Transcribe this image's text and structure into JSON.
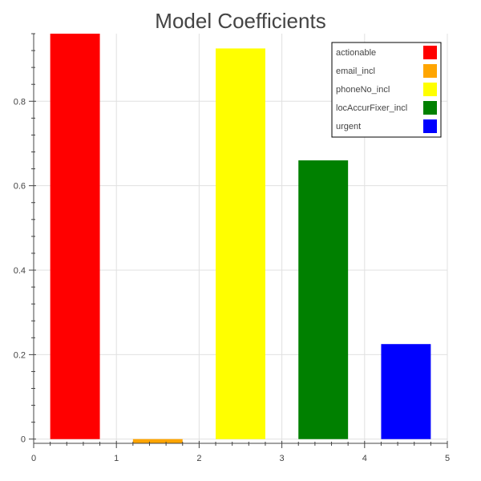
{
  "chart_data": {
    "type": "bar",
    "title": "Model Coefficients",
    "xlabel": "",
    "ylabel": "",
    "xlim": [
      0,
      5
    ],
    "ylim": [
      -0.01,
      0.96
    ],
    "x_ticks": [
      0,
      1,
      2,
      3,
      4,
      5
    ],
    "x_tick_labels": [
      "0",
      "1",
      "2",
      "3",
      "4",
      "5"
    ],
    "y_ticks": [
      0,
      0.2,
      0.4,
      0.6,
      0.8
    ],
    "y_tick_labels": [
      "0",
      "0.2",
      "0.4",
      "0.6",
      "0.8"
    ],
    "grid": true,
    "legend_position": "top-right",
    "bar_width": 0.6,
    "categories": [
      "actionable",
      "email_incl",
      "phoneNo_incl",
      "locAccurFixer_incl",
      "urgent"
    ],
    "x": [
      0.5,
      1.5,
      2.5,
      3.5,
      4.5
    ],
    "values": [
      0.96,
      -0.01,
      0.925,
      0.66,
      0.225
    ],
    "colors": [
      "#ff0000",
      "#ffa500",
      "#ffff00",
      "#008000",
      "#0000ff"
    ]
  }
}
